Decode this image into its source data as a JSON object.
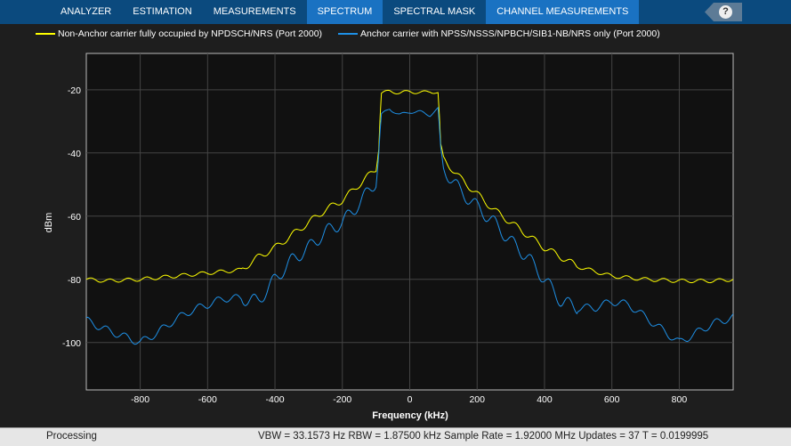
{
  "toolbar": {
    "tabs": [
      "ANALYZER",
      "ESTIMATION",
      "MEASUREMENTS",
      "SPECTRUM",
      "SPECTRAL MASK",
      "CHANNEL MEASUREMENTS"
    ],
    "active": "SPECTRUM",
    "help": "?"
  },
  "status": {
    "state": "Processing",
    "info": "VBW = 33.1573 Hz  RBW = 1.87500 kHz  Sample Rate = 1.92000 MHz  Updates = 37  T = 0.0199995"
  },
  "chart_data": {
    "type": "line",
    "xlabel": "Frequency (kHz)",
    "ylabel": "dBm",
    "xlim": [
      -960,
      960
    ],
    "ylim": [
      -115,
      -8.5
    ],
    "xticks": [
      -800,
      -600,
      -400,
      -200,
      0,
      200,
      400,
      600,
      800
    ],
    "yticks": [
      -100,
      -80,
      -60,
      -40,
      -20
    ],
    "grid": true,
    "legend": "top",
    "series": [
      {
        "name": "Non-Anchor carrier fully occupied by NPDSCH/NRS (Port 2000)",
        "color": "#ffff00",
        "x": [
          -960,
          -900,
          -800,
          -700,
          -600,
          -500,
          -450,
          -400,
          -350,
          -300,
          -250,
          -200,
          -150,
          -100,
          -92,
          -85,
          -60,
          -30,
          0,
          30,
          60,
          85,
          92,
          100,
          150,
          200,
          250,
          300,
          350,
          400,
          450,
          500,
          600,
          700,
          800,
          900,
          960
        ],
        "y": [
          -80,
          -80.5,
          -80,
          -79,
          -78,
          -77,
          -73,
          -70,
          -66,
          -62,
          -58,
          -55,
          -50,
          -45,
          -38,
          -21,
          -20.5,
          -21,
          -20.5,
          -21,
          -20.5,
          -21,
          -38,
          -42,
          -48,
          -53,
          -58,
          -62,
          -66,
          -70,
          -73,
          -76,
          -79,
          -80,
          -80.5,
          -80.5,
          -80
        ]
      },
      {
        "name": "Anchor carrier with NPSS/NSSS/NPBCH/SIB1-NB/NRS only (Port 2000)",
        "color": "#1e90e6",
        "x": [
          -960,
          -900,
          -850,
          -800,
          -750,
          -700,
          -650,
          -600,
          -550,
          -500,
          -450,
          -400,
          -350,
          -300,
          -250,
          -200,
          -150,
          -100,
          -92,
          -85,
          -60,
          -30,
          0,
          30,
          60,
          85,
          92,
          100,
          150,
          200,
          250,
          300,
          350,
          400,
          450,
          500,
          550,
          600,
          650,
          700,
          750,
          800,
          850,
          900,
          960
        ],
        "y": [
          -93,
          -96,
          -98,
          -100,
          -97,
          -93,
          -90,
          -88,
          -86,
          -86,
          -87,
          -80,
          -74,
          -70,
          -65,
          -62,
          -56,
          -49,
          -40,
          -28,
          -26,
          -28,
          -27,
          -27,
          -28,
          -26,
          -40,
          -45,
          -52,
          -57,
          -62,
          -68,
          -73,
          -80,
          -87,
          -89,
          -89,
          -87,
          -88,
          -92,
          -96,
          -100,
          -97,
          -94,
          -92
        ]
      }
    ]
  }
}
